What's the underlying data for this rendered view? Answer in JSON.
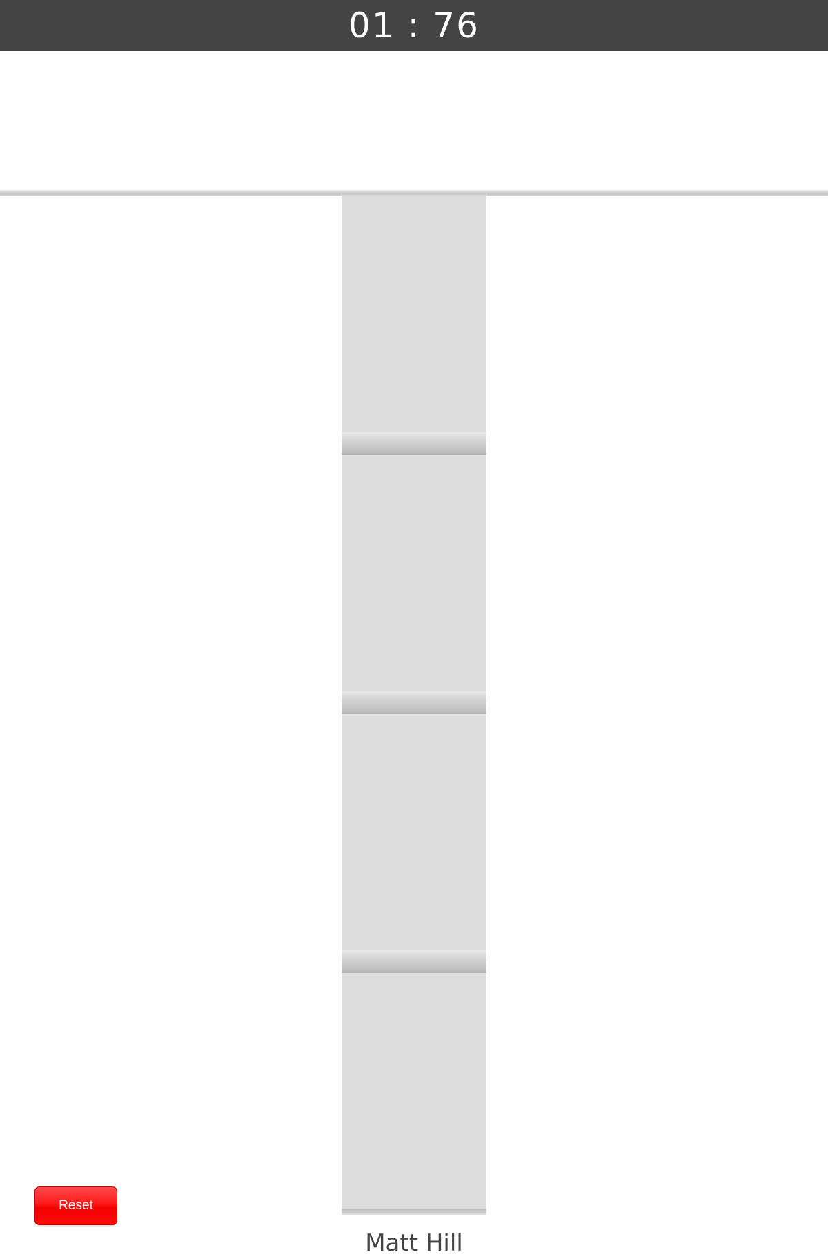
{
  "timer": {
    "display": "01 : 76"
  },
  "stack": {
    "block_color": "#dddddd",
    "block_count": 4
  },
  "footer": {
    "credit": "Matt Hill"
  },
  "controls": {
    "reset_label": "Reset",
    "reset_color": "#ff0000"
  },
  "colors": {
    "top_bar": "#444444",
    "background": "#ffffff"
  }
}
